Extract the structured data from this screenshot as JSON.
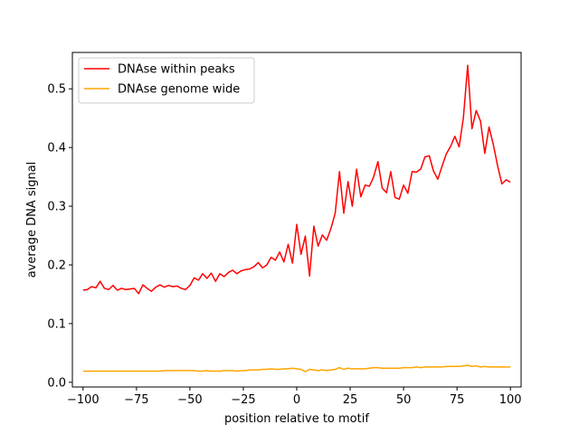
{
  "chart_data": {
    "type": "line",
    "xlabel": "position relative to motif",
    "ylabel": "average DNA signal",
    "xlim": [
      -105,
      105
    ],
    "ylim": [
      -0.008,
      0.562
    ],
    "x_ticks": [
      -100,
      -75,
      -50,
      -25,
      0,
      25,
      50,
      75,
      100
    ],
    "x_tick_labels": [
      "−100",
      "−75",
      "−50",
      "−25",
      "0",
      "25",
      "50",
      "75",
      "100"
    ],
    "y_ticks": [
      0.0,
      0.1,
      0.2,
      0.3,
      0.4,
      0.5
    ],
    "y_tick_labels": [
      "0.0",
      "0.1",
      "0.2",
      "0.3",
      "0.4",
      "0.5"
    ],
    "grid": false,
    "legend_position": "upper-left",
    "x": [
      -100,
      -98,
      -96,
      -94,
      -92,
      -90,
      -88,
      -86,
      -84,
      -82,
      -80,
      -78,
      -76,
      -74,
      -72,
      -70,
      -68,
      -66,
      -64,
      -62,
      -60,
      -58,
      -56,
      -54,
      -52,
      -50,
      -48,
      -46,
      -44,
      -42,
      -40,
      -38,
      -36,
      -34,
      -32,
      -30,
      -28,
      -26,
      -24,
      -22,
      -20,
      -18,
      -16,
      -14,
      -12,
      -10,
      -8,
      -6,
      -4,
      -2,
      0,
      2,
      4,
      6,
      8,
      10,
      12,
      14,
      16,
      18,
      20,
      22,
      24,
      26,
      28,
      30,
      32,
      34,
      36,
      38,
      40,
      42,
      44,
      46,
      48,
      50,
      52,
      54,
      56,
      58,
      60,
      62,
      64,
      66,
      68,
      70,
      72,
      74,
      76,
      78,
      80,
      82,
      84,
      86,
      88,
      90,
      92,
      94,
      96,
      98,
      100
    ],
    "series": [
      {
        "name": "DNAse within peaks",
        "color": "#ff0000",
        "values": [
          0.157,
          0.158,
          0.163,
          0.161,
          0.172,
          0.16,
          0.158,
          0.165,
          0.157,
          0.16,
          0.158,
          0.159,
          0.16,
          0.151,
          0.166,
          0.16,
          0.155,
          0.162,
          0.166,
          0.162,
          0.165,
          0.163,
          0.164,
          0.16,
          0.158,
          0.165,
          0.178,
          0.174,
          0.185,
          0.177,
          0.186,
          0.172,
          0.185,
          0.18,
          0.187,
          0.191,
          0.185,
          0.19,
          0.192,
          0.193,
          0.197,
          0.204,
          0.195,
          0.2,
          0.213,
          0.208,
          0.222,
          0.205,
          0.235,
          0.203,
          0.269,
          0.218,
          0.249,
          0.181,
          0.266,
          0.232,
          0.251,
          0.242,
          0.262,
          0.288,
          0.359,
          0.288,
          0.342,
          0.3,
          0.363,
          0.316,
          0.336,
          0.334,
          0.35,
          0.376,
          0.331,
          0.323,
          0.359,
          0.315,
          0.312,
          0.336,
          0.322,
          0.359,
          0.358,
          0.363,
          0.384,
          0.386,
          0.36,
          0.346,
          0.368,
          0.389,
          0.402,
          0.419,
          0.401,
          0.451,
          0.54,
          0.432,
          0.463,
          0.445,
          0.39,
          0.435,
          0.405,
          0.369,
          0.338,
          0.345,
          0.341
        ]
      },
      {
        "name": "DNAse genome wide",
        "color": "#ffa500",
        "values": [
          0.019,
          0.019,
          0.019,
          0.019,
          0.019,
          0.019,
          0.019,
          0.019,
          0.019,
          0.019,
          0.019,
          0.019,
          0.019,
          0.019,
          0.019,
          0.019,
          0.019,
          0.019,
          0.019,
          0.02,
          0.02,
          0.02,
          0.02,
          0.02,
          0.02,
          0.02,
          0.02,
          0.019,
          0.019,
          0.02,
          0.019,
          0.019,
          0.019,
          0.02,
          0.02,
          0.02,
          0.019,
          0.02,
          0.02,
          0.021,
          0.021,
          0.021,
          0.022,
          0.022,
          0.023,
          0.022,
          0.022,
          0.023,
          0.023,
          0.024,
          0.023,
          0.022,
          0.018,
          0.022,
          0.021,
          0.02,
          0.021,
          0.02,
          0.021,
          0.022,
          0.025,
          0.022,
          0.024,
          0.023,
          0.023,
          0.023,
          0.023,
          0.024,
          0.025,
          0.025,
          0.024,
          0.024,
          0.024,
          0.024,
          0.024,
          0.025,
          0.025,
          0.025,
          0.026,
          0.025,
          0.026,
          0.026,
          0.026,
          0.026,
          0.026,
          0.027,
          0.027,
          0.027,
          0.027,
          0.028,
          0.029,
          0.027,
          0.028,
          0.026,
          0.027,
          0.026,
          0.026,
          0.026,
          0.026,
          0.026,
          0.026
        ]
      }
    ]
  }
}
